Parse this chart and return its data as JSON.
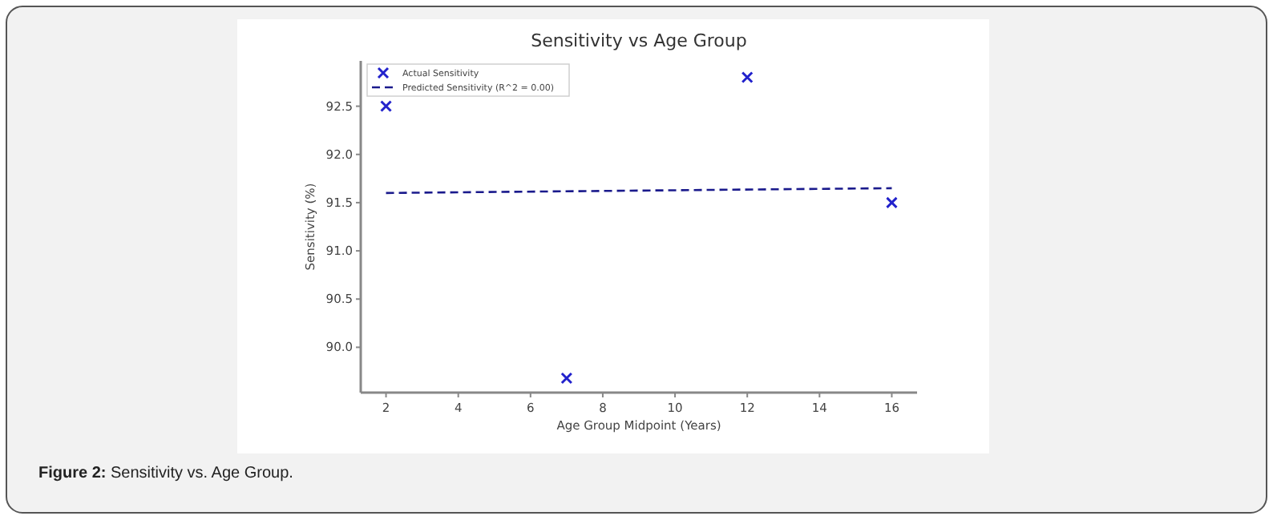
{
  "chart_data": {
    "type": "scatter",
    "title": "Sensitivity vs Age Group",
    "xlabel": "Age Group Midpoint (Years)",
    "ylabel": "Sensitivity (%)",
    "annotations": [
      "Figure 2: Sensitivity vs. Age Group."
    ],
    "xlim": [
      1.3,
      16.7
    ],
    "xticks": [
      2,
      4,
      6,
      8,
      10,
      12,
      14,
      16
    ],
    "ylim": [
      89.53,
      92.97
    ],
    "yticks": [
      {
        "value": 90,
        "label": "90.0"
      },
      90.5,
      {
        "value": 91,
        "label": "91.0"
      },
      91.5,
      {
        "value": 92,
        "label": "92.0"
      },
      92.5
    ],
    "grid": false,
    "legend": "top left",
    "series": [
      {
        "name": "Actual Sensitivity",
        "color": "#2222cc",
        "marker": "cross",
        "x": [
          2,
          7,
          12,
          16
        ],
        "values": [
          92.5,
          89.68,
          92.8,
          91.5
        ]
      },
      {
        "type": "line",
        "name": "Predicted Sensitivity (R^2 = 0.00)",
        "color": "#1a1a8c",
        "line_style": "dashed",
        "x": [
          2,
          16
        ],
        "values": [
          91.6,
          91.65
        ]
      }
    ]
  }
}
